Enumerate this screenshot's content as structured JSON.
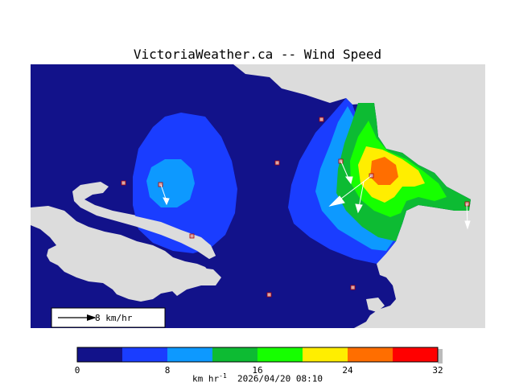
{
  "title": "VictoriaWeather.ca -- Wind Speed",
  "colorbar": {
    "ticks": [
      "0",
      "8",
      "16",
      "24",
      "32"
    ],
    "units_prefix": "km hr",
    "units_sup": "-1",
    "timestamp": "2026/04/20 08:10",
    "colors": [
      "#12128a",
      "#1a3dff",
      "#0d99ff",
      "#0dbb33",
      "#16ff00",
      "#ffee00",
      "#ff6e00",
      "#ff0000"
    ]
  },
  "legend": {
    "label": "8 km/hr"
  },
  "map_colors": {
    "land_bg": "#dcdcdc",
    "water": "#12128a"
  }
}
